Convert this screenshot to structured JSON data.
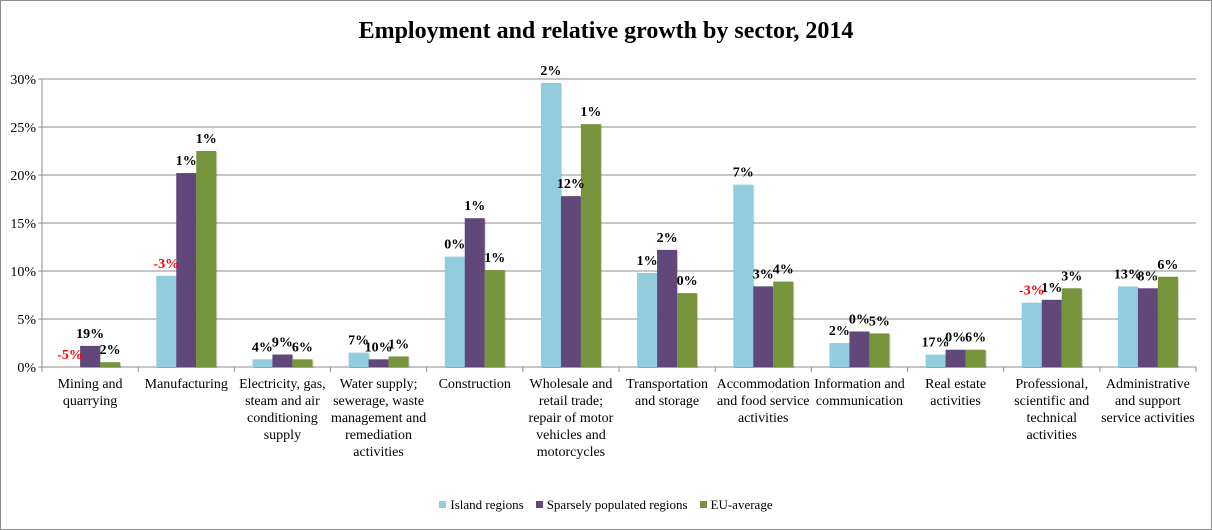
{
  "chart_data": {
    "type": "bar",
    "title": "Employment and relative growth by sector, 2014",
    "categories": [
      [
        "Mining and",
        "quarrying"
      ],
      [
        "Manufacturing"
      ],
      [
        "Electricity, gas,",
        "steam and air",
        "conditioning",
        "supply"
      ],
      [
        "Water supply;",
        "sewerage, waste",
        "management and",
        "remediation",
        "activities"
      ],
      [
        "Construction"
      ],
      [
        "Wholesale and",
        "retail trade;",
        "repair of motor",
        "vehicles and",
        "motorcycles"
      ],
      [
        "Transportation",
        "and storage"
      ],
      [
        "Accommodation",
        "and food service",
        "activities"
      ],
      [
        "Information and",
        "communication"
      ],
      [
        "Real estate",
        "activities"
      ],
      [
        "Professional,",
        "scientific and",
        "technical",
        "activities"
      ],
      [
        "Administrative",
        "and support",
        "service activities"
      ]
    ],
    "ylim": [
      0,
      30
    ],
    "yticks": [
      "0%",
      "5%",
      "10%",
      "15%",
      "20%",
      "25%",
      "30%"
    ],
    "grid": true,
    "legend_position": "bottom",
    "series": [
      {
        "name": "Island regions",
        "color": "#93CDDD",
        "values": [
          0,
          9.5,
          0.8,
          1.5,
          11.5,
          29.6,
          9.8,
          19,
          2.5,
          1.3,
          6.7,
          8.4
        ],
        "growth_labels": [
          "-5%",
          "-3%",
          "4%",
          "7%",
          "0%",
          "2%",
          "1%",
          "7%",
          "2%",
          "17%",
          "-3%",
          "13%"
        ]
      },
      {
        "name": "Sparsely populated regions",
        "color": "#60497A",
        "values": [
          2.2,
          20.2,
          1.3,
          0.8,
          15.5,
          17.8,
          12.2,
          8.4,
          3.7,
          1.8,
          7,
          8.2
        ],
        "growth_labels": [
          "19%",
          "1%",
          "9%",
          "10%",
          "1%",
          "12%",
          "2%",
          "3%",
          "0%",
          "0%",
          "1%",
          "8%"
        ]
      },
      {
        "name": "EU-average",
        "color": "#77933C",
        "values": [
          0.5,
          22.5,
          0.8,
          1.1,
          10.1,
          25.3,
          7.7,
          8.9,
          3.5,
          1.8,
          8.2,
          9.4
        ],
        "growth_labels": [
          "2%",
          "1%",
          "6%",
          "1%",
          "1%",
          "1%",
          "0%",
          "4%",
          "5%",
          "6%",
          "3%",
          "6%"
        ]
      }
    ]
  }
}
